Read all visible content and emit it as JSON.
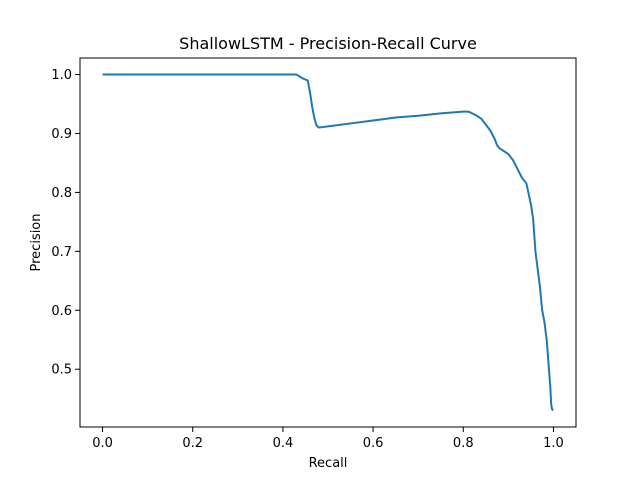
{
  "chart_data": {
    "type": "line",
    "title": "ShallowLSTM - Precision-Recall Curve",
    "xlabel": "Recall",
    "ylabel": "Precision",
    "xlim": [
      -0.05,
      1.05
    ],
    "ylim": [
      0.402,
      1.028
    ],
    "grid": false,
    "xticks": [
      0.0,
      0.2,
      0.4,
      0.6,
      0.8,
      1.0
    ],
    "xtick_labels": [
      "0.0",
      "0.2",
      "0.4",
      "0.6",
      "0.8",
      "1.0"
    ],
    "yticks": [
      0.5,
      0.6,
      0.7,
      0.8,
      0.9,
      1.0
    ],
    "ytick_labels": [
      "0.5",
      "0.6",
      "0.7",
      "0.8",
      "0.9",
      "1.0"
    ],
    "series": [
      {
        "color": "#1f77b4",
        "x": [
          0.0,
          0.1,
          0.2,
          0.3,
          0.4,
          0.43,
          0.445,
          0.455,
          0.46,
          0.465,
          0.47,
          0.475,
          0.48,
          0.5,
          0.55,
          0.6,
          0.65,
          0.7,
          0.75,
          0.8,
          0.81,
          0.815,
          0.83,
          0.84,
          0.85,
          0.86,
          0.87,
          0.875,
          0.88,
          0.9,
          0.91,
          0.92,
          0.93,
          0.94,
          0.95,
          0.955,
          0.96,
          0.965,
          0.97,
          0.975,
          0.98,
          0.985,
          0.99,
          0.993,
          0.995,
          0.997,
          0.998,
          1.0
        ],
        "y": [
          1.0,
          1.0,
          1.0,
          1.0,
          1.0,
          1.0,
          0.993,
          0.99,
          0.97,
          0.945,
          0.925,
          0.913,
          0.91,
          0.912,
          0.917,
          0.922,
          0.927,
          0.93,
          0.934,
          0.937,
          0.937,
          0.936,
          0.93,
          0.925,
          0.915,
          0.905,
          0.89,
          0.88,
          0.875,
          0.865,
          0.855,
          0.84,
          0.825,
          0.815,
          0.78,
          0.755,
          0.7,
          0.67,
          0.64,
          0.6,
          0.58,
          0.55,
          0.5,
          0.47,
          0.44,
          0.432,
          0.431,
          0.431
        ]
      }
    ]
  }
}
